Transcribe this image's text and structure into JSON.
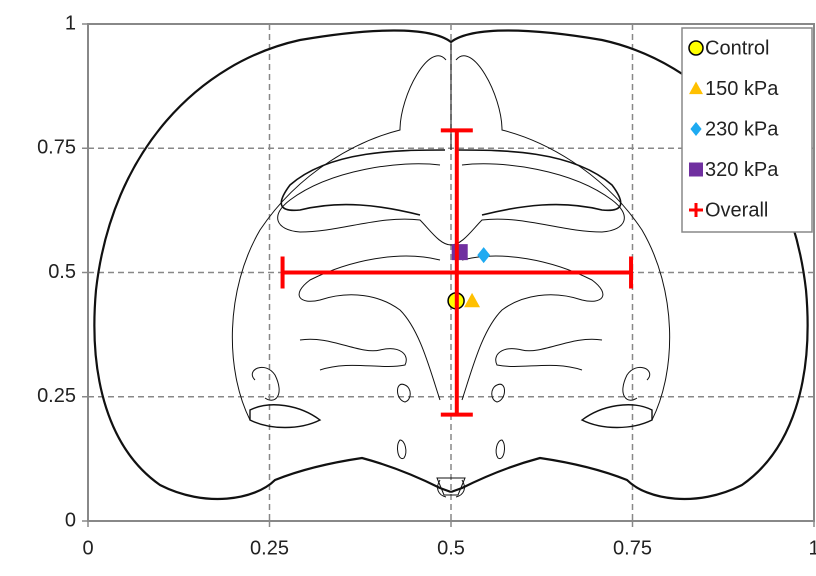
{
  "chart_data": {
    "type": "scatter",
    "xlim": [
      0,
      1
    ],
    "ylim": [
      0,
      1
    ],
    "xticks": [
      0,
      0.25,
      0.5,
      0.75,
      1
    ],
    "yticks": [
      0,
      0.25,
      0.5,
      0.75,
      1
    ],
    "grid": true,
    "legend": "top-right",
    "series": [
      {
        "name": "Control",
        "color": "#ffff00",
        "marker": "circle",
        "x": [
          0.507
        ],
        "values": [
          0.443
        ]
      },
      {
        "name": "150 kPa",
        "color": "#ffc000",
        "marker": "triangle",
        "x": [
          0.529
        ],
        "values": [
          0.443
        ]
      },
      {
        "name": "230 kPa",
        "color": "#1eaaf1",
        "marker": "diamond",
        "x": [
          0.545
        ],
        "values": [
          0.535
        ]
      },
      {
        "name": "320 kPa",
        "color": "#7030a0",
        "marker": "square",
        "x": [
          0.512
        ],
        "values": [
          0.541
        ]
      },
      {
        "name": "Overall",
        "color": "#ff0000",
        "marker": "plus",
        "x": [
          0.508
        ],
        "values": [
          0.5
        ],
        "x_error": [
          0.24
        ],
        "y_error": [
          0.286
        ]
      }
    ]
  }
}
